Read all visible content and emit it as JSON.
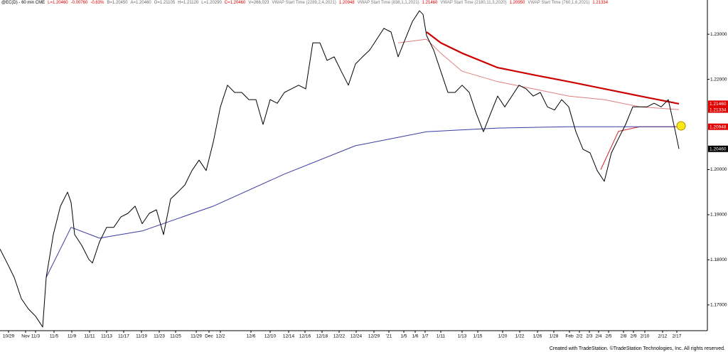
{
  "chart_data": {
    "type": "line",
    "header_stats": [
      {
        "text": "L=1.20460",
        "color": "#e00000"
      },
      {
        "text": "-0.00760",
        "color": "#e00000"
      },
      {
        "text": "-0.63%",
        "color": "#e00000"
      },
      {
        "text": "B=1.20450",
        "color": "#666666"
      },
      {
        "text": "A=1.20460",
        "color": "#666666"
      },
      {
        "text": "O=1.21105",
        "color": "#666666"
      },
      {
        "text": "H=1.21120",
        "color": "#666666"
      },
      {
        "text": "L=1.20290",
        "color": "#666666"
      },
      {
        "text": "C=1.20460",
        "color": "#e00000"
      },
      {
        "text": "V=266,023",
        "color": "#666666"
      }
    ],
    "footer": "Created with TradeStation. ©TradeStation Technologies, Inc. All rights reserved.",
    "xlim": [
      0,
      995
    ],
    "ylim": [
      1.1643,
      1.2368
    ],
    "yticks": [
      {
        "value": 1.17,
        "label": "1.17000"
      },
      {
        "value": 1.18,
        "label": "1.18000"
      },
      {
        "value": 1.19,
        "label": "1.19000"
      },
      {
        "value": 1.2,
        "label": "1.20000"
      },
      {
        "value": 1.22,
        "label": "1.22000"
      },
      {
        "value": 1.23,
        "label": "1.23000"
      }
    ],
    "xticks": [
      {
        "value": 12,
        "label": "10/29"
      },
      {
        "value": 36,
        "label": "Nov"
      },
      {
        "value": 50,
        "label": "11/3"
      },
      {
        "value": 76,
        "label": "11/5"
      },
      {
        "value": 101,
        "label": "11/9"
      },
      {
        "value": 126,
        "label": "11/11"
      },
      {
        "value": 150,
        "label": "11/13"
      },
      {
        "value": 174,
        "label": "11/17"
      },
      {
        "value": 199,
        "label": "11/19"
      },
      {
        "value": 224,
        "label": "11/23"
      },
      {
        "value": 247,
        "label": "11/25"
      },
      {
        "value": 276,
        "label": "11/29"
      },
      {
        "value": 294,
        "label": "Dec"
      },
      {
        "value": 310,
        "label": "12/2"
      },
      {
        "value": 353,
        "label": "12/6"
      },
      {
        "value": 380,
        "label": "12/10"
      },
      {
        "value": 406,
        "label": "12/14"
      },
      {
        "value": 429,
        "label": "12/16"
      },
      {
        "value": 453,
        "label": "12/18"
      },
      {
        "value": 477,
        "label": "12/22"
      },
      {
        "value": 501,
        "label": "12/24"
      },
      {
        "value": 526,
        "label": "12/29"
      },
      {
        "value": 547,
        "label": "'21"
      },
      {
        "value": 568,
        "label": "1/5"
      },
      {
        "value": 584,
        "label": "1/6"
      },
      {
        "value": 598,
        "label": "1/7"
      },
      {
        "value": 620,
        "label": "1/11"
      },
      {
        "value": 650,
        "label": "1/13"
      },
      {
        "value": 672,
        "label": "1/15"
      },
      {
        "value": 707,
        "label": "1/20"
      },
      {
        "value": 731,
        "label": "1/22"
      },
      {
        "value": 756,
        "label": "1/26"
      },
      {
        "value": 779,
        "label": "1/28"
      },
      {
        "value": 801,
        "label": "Feb"
      },
      {
        "value": 815,
        "label": "2/2"
      },
      {
        "value": 829,
        "label": "2/3"
      },
      {
        "value": 842,
        "label": "2/4"
      },
      {
        "value": 856,
        "label": "2/5"
      },
      {
        "value": 877,
        "label": "2/8"
      },
      {
        "value": 891,
        "label": "2/9"
      },
      {
        "value": 907,
        "label": "2/10"
      },
      {
        "value": 932,
        "label": "2/12"
      },
      {
        "value": 952,
        "label": "2/17"
      }
    ],
    "series": [
      {
        "name": "@EC(D) - 60 min CME",
        "color": "#000000",
        "width": 1,
        "last_label": "1.20460",
        "tag": true,
        "x": [
          0,
          10,
          20,
          30,
          40,
          50,
          60,
          65,
          75,
          85,
          95,
          100,
          105,
          115,
          125,
          130,
          140,
          150,
          160,
          170,
          180,
          190,
          200,
          210,
          220,
          230,
          240,
          250,
          260,
          270,
          280,
          290,
          300,
          310,
          320,
          330,
          340,
          350,
          360,
          370,
          380,
          390,
          400,
          410,
          420,
          430,
          440,
          450,
          460,
          470,
          480,
          490,
          500,
          510,
          520,
          530,
          540,
          550,
          560,
          570,
          580,
          590,
          595,
          600,
          610,
          620,
          630,
          640,
          650,
          660,
          670,
          680,
          690,
          700,
          710,
          720,
          730,
          740,
          750,
          760,
          770,
          780,
          790,
          800,
          810,
          820,
          830,
          840,
          850,
          860,
          870,
          880,
          890,
          900,
          910,
          920,
          930,
          940,
          950,
          955
        ],
        "values": [
          1.1824,
          1.1793,
          1.1761,
          1.1714,
          1.1691,
          1.1675,
          1.1651,
          1.1761,
          1.1856,
          1.1919,
          1.195,
          1.1927,
          1.1856,
          1.1832,
          1.1801,
          1.1793,
          1.184,
          1.1872,
          1.1872,
          1.1895,
          1.1903,
          1.1919,
          1.188,
          1.1903,
          1.1911,
          1.1856,
          1.1935,
          1.195,
          1.1966,
          1.1998,
          1.2021,
          1.1998,
          1.2061,
          1.2139,
          1.2187,
          1.2171,
          1.2171,
          1.2155,
          1.2155,
          1.21,
          1.2155,
          1.2147,
          1.2171,
          1.2179,
          1.2187,
          1.2179,
          1.2281,
          1.2281,
          1.2242,
          1.225,
          1.2218,
          1.2187,
          1.2234,
          1.225,
          1.2265,
          1.2289,
          1.2313,
          1.2305,
          1.225,
          1.2289,
          1.2328,
          1.2352,
          1.2344,
          1.2297,
          1.2265,
          1.2218,
          1.2171,
          1.2171,
          1.2187,
          1.2171,
          1.2124,
          1.2084,
          1.2124,
          1.2163,
          1.2139,
          1.2163,
          1.2187,
          1.2179,
          1.2163,
          1.2171,
          1.2139,
          1.2132,
          1.2155,
          1.2139,
          1.2084,
          1.2045,
          1.2037,
          1.1998,
          1.1974,
          1.2037,
          1.2069,
          1.21,
          1.2139,
          1.2139,
          1.2139,
          1.2147,
          1.2139,
          1.2155,
          1.2084,
          1.2046
        ]
      },
      {
        "name": "VWAP Start Time (2289,2,4,2021)",
        "color": "#cc2222",
        "width": 1,
        "last_label": "1.20948",
        "tag": true,
        "x": [
          845,
          870,
          900,
          955
        ],
        "values": [
          1.2,
          1.2085,
          1.2095,
          1.2095
        ]
      },
      {
        "name": "VWAP Start Time (838,1,1,2021)",
        "color": "#cc0000",
        "width": 2.2,
        "last_label": "1.21460",
        "tag": true,
        "x": [
          600,
          620,
          650,
          700,
          750,
          800,
          850,
          900,
          955
        ],
        "values": [
          1.2305,
          1.2281,
          1.2258,
          1.2226,
          1.221,
          1.2195,
          1.2179,
          1.2163,
          1.2146
        ]
      },
      {
        "name": "VWAP Start Time (2180,11,3,2020)",
        "color": "#3a3aa0",
        "width": 1,
        "last_label": "1.20950",
        "tag": false,
        "x": [
          65,
          100,
          140,
          200,
          300,
          400,
          500,
          600,
          700,
          800,
          900,
          950
        ],
        "values": [
          1.1761,
          1.1872,
          1.1848,
          1.1864,
          1.1919,
          1.199,
          1.2053,
          1.2084,
          1.2092,
          1.2095,
          1.2095,
          1.2095
        ]
      },
      {
        "name": "VWAP Start Time (760,1,6,2021)",
        "color": "#e08080",
        "width": 1,
        "last_label": "1.21334",
        "tag": true,
        "x": [
          560,
          600,
          620,
          650,
          700,
          750,
          800,
          850,
          900,
          955
        ],
        "values": [
          1.2281,
          1.2289,
          1.2258,
          1.2218,
          1.2195,
          1.2179,
          1.2163,
          1.2155,
          1.2139,
          1.2133
        ]
      }
    ]
  }
}
